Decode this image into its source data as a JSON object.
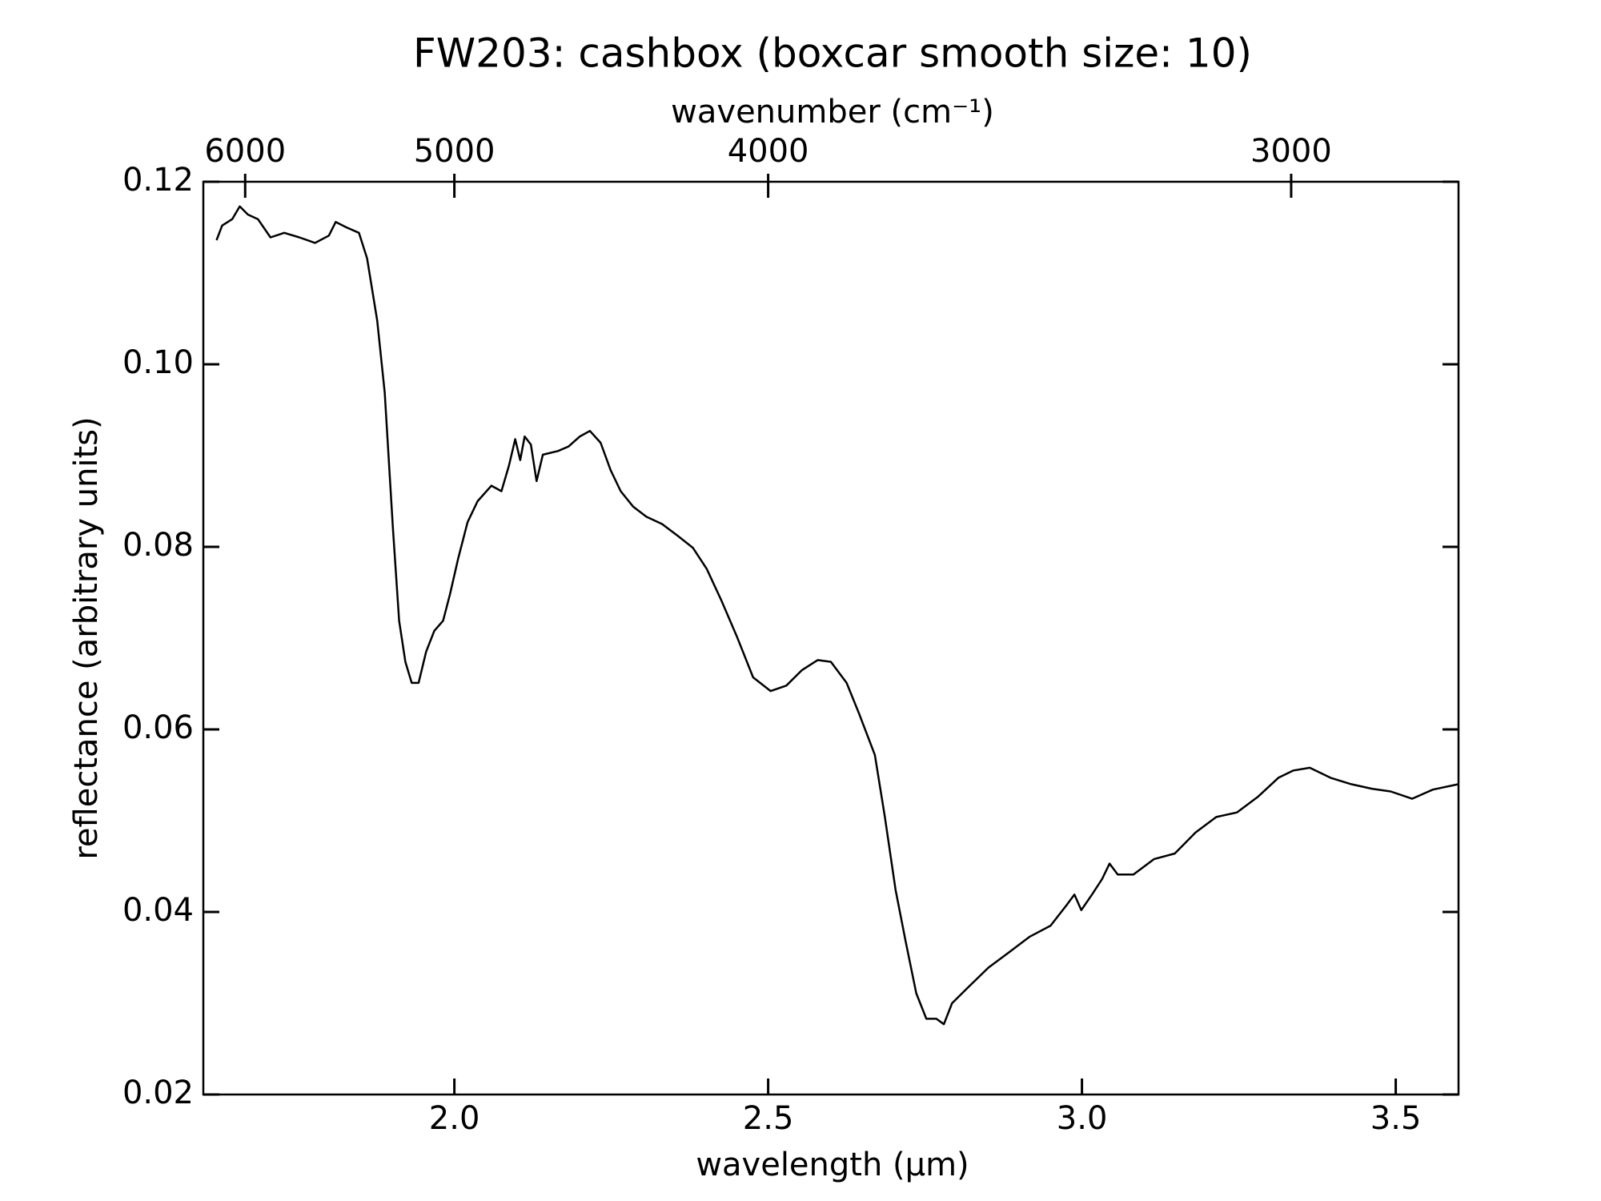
{
  "chart_data": {
    "type": "line",
    "title": "FW203: cashbox (boxcar smooth size: 10)",
    "x_label": "wavelength (μm)",
    "y_label": "reflectance (arbitrary units)",
    "x2_label": "wavenumber (cm⁻¹)",
    "color": "#000000",
    "x": [
      1.621,
      1.63,
      1.646,
      1.658,
      1.671,
      1.687,
      1.707,
      1.729,
      1.753,
      1.778,
      1.8,
      1.811,
      1.828,
      1.848,
      1.861,
      1.877,
      1.889,
      1.902,
      1.912,
      1.922,
      1.932,
      1.943,
      1.955,
      1.968,
      1.982,
      1.993,
      2.006,
      2.021,
      2.037,
      2.059,
      2.075,
      2.087,
      2.097,
      2.105,
      2.112,
      2.122,
      2.131,
      2.141,
      2.165,
      2.182,
      2.2,
      2.216,
      2.233,
      2.249,
      2.265,
      2.285,
      2.306,
      2.331,
      2.356,
      2.38,
      2.402,
      2.425,
      2.45,
      2.476,
      2.504,
      2.529,
      2.554,
      2.579,
      2.6,
      2.625,
      2.645,
      2.67,
      2.686,
      2.703,
      2.719,
      2.736,
      2.752,
      2.768,
      2.78,
      2.793,
      2.818,
      2.851,
      2.884,
      2.917,
      2.95,
      2.975,
      2.988,
      2.999,
      3.016,
      3.032,
      3.044,
      3.057,
      3.082,
      3.115,
      3.148,
      3.181,
      3.214,
      3.247,
      3.28,
      3.313,
      3.337,
      3.363,
      3.396,
      3.429,
      3.462,
      3.492,
      3.526,
      3.559,
      3.6
    ],
    "values": [
      0.1136,
      0.1152,
      0.1159,
      0.1173,
      0.1164,
      0.1159,
      0.1139,
      0.1144,
      0.1139,
      0.1133,
      0.1141,
      0.1156,
      0.115,
      0.1144,
      0.1116,
      0.1048,
      0.0969,
      0.0821,
      0.0719,
      0.0674,
      0.0651,
      0.0651,
      0.0685,
      0.0708,
      0.0719,
      0.0748,
      0.0787,
      0.0827,
      0.085,
      0.0867,
      0.0861,
      0.0889,
      0.0918,
      0.0895,
      0.0921,
      0.0912,
      0.0872,
      0.0901,
      0.0905,
      0.091,
      0.0921,
      0.0927,
      0.0914,
      0.0884,
      0.0861,
      0.0844,
      0.0833,
      0.0825,
      0.0812,
      0.0799,
      0.0776,
      0.0742,
      0.0702,
      0.0657,
      0.0642,
      0.0648,
      0.0665,
      0.0676,
      0.0674,
      0.0651,
      0.0617,
      0.0572,
      0.0504,
      0.0424,
      0.0368,
      0.0311,
      0.0283,
      0.0283,
      0.0277,
      0.03,
      0.0317,
      0.0339,
      0.0356,
      0.0373,
      0.0385,
      0.0407,
      0.0419,
      0.0402,
      0.0419,
      0.0436,
      0.0453,
      0.0441,
      0.0441,
      0.0458,
      0.0464,
      0.0487,
      0.0504,
      0.0509,
      0.0526,
      0.0547,
      0.0555,
      0.0558,
      0.0547,
      0.054,
      0.0535,
      0.0532,
      0.0524,
      0.0534,
      0.054
    ],
    "xlim": [
      1.6,
      3.6
    ],
    "xticks": [
      {
        "value": 2.0,
        "label": "2.0"
      },
      {
        "value": 2.5,
        "label": "2.5"
      },
      {
        "value": 3.0,
        "label": "3.0"
      },
      {
        "value": 3.5,
        "label": "3.5"
      }
    ],
    "ylim": [
      0.02,
      0.12
    ],
    "yticks": [
      0.02,
      0.04,
      0.06,
      0.08,
      {
        "value": 0.1,
        "label": "0.10"
      },
      0.12
    ],
    "x2scale": "reciprocal",
    "x2lim": [
      6250,
      2777.78
    ],
    "x2ticks": [
      6000,
      5000,
      4000,
      3000
    ],
    "grid": false
  }
}
